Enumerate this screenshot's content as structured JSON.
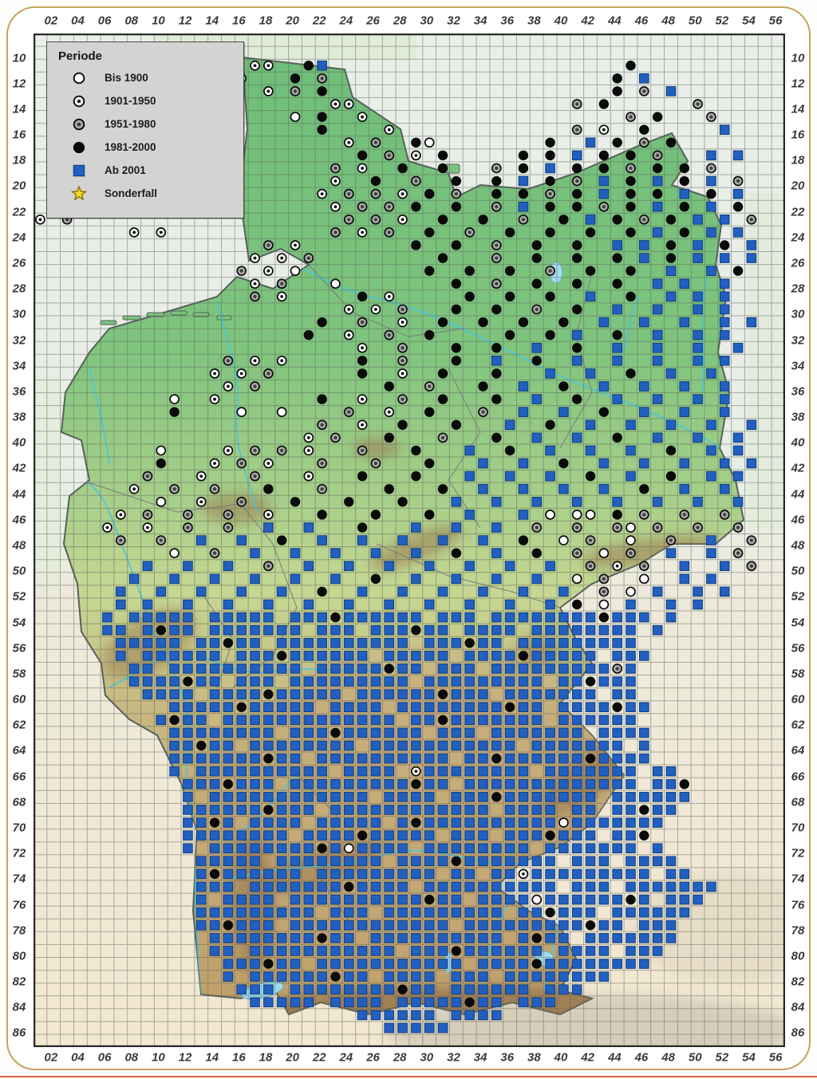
{
  "legend": {
    "title": "Periode",
    "items": [
      {
        "symbol": "circle-open",
        "label": "Bis 1900"
      },
      {
        "symbol": "circle-dot",
        "label": "1901-1950"
      },
      {
        "symbol": "circle-gray",
        "label": "1951-1980"
      },
      {
        "symbol": "circle-filled",
        "label": "1981-2000"
      },
      {
        "symbol": "square-blue",
        "label": "Ab 2001"
      },
      {
        "symbol": "star-yellow",
        "label": "Sonderfall"
      }
    ]
  },
  "axes": {
    "x_labels": [
      "02",
      "04",
      "06",
      "08",
      "10",
      "12",
      "14",
      "16",
      "18",
      "20",
      "22",
      "24",
      "26",
      "28",
      "30",
      "32",
      "34",
      "36",
      "38",
      "40",
      "42",
      "44",
      "46",
      "48",
      "50",
      "52",
      "54",
      "56"
    ],
    "y_labels": [
      "10",
      "12",
      "14",
      "16",
      "18",
      "20",
      "22",
      "24",
      "26",
      "28",
      "30",
      "32",
      "34",
      "36",
      "38",
      "40",
      "42",
      "44",
      "46",
      "48",
      "50",
      "52",
      "54",
      "56",
      "58",
      "60",
      "62",
      "64",
      "66",
      "68",
      "70",
      "72",
      "74",
      "76",
      "78",
      "80",
      "82",
      "84",
      "86"
    ]
  },
  "map": {
    "description": "Grid distribution map of Germany with occurrence records per period",
    "symbol_key": {
      "w": "Bis 1900",
      "d": "1901-1950",
      "g": "1951-1980",
      "k": "1981-2000",
      "b": "Ab 2001"
    },
    "cells": [
      "........................................................",
      "..............w.........................................",
      "................dd..kb......................k...........",
      "...............d...k.g.....................k.b..........",
      ".................d.g.k.....................k.g.b........",
      "......................dd................g.k......g......",
      "...................w.k..d...................g.k...g.....",
      ".....................k....d.............g.d..k.....b....",
      ".......................d.g..kw........k..b.k.g.k........",
      "........................k.g.d.k.....k.k.b.k.k.g...b.b...",
      "......................g.d..k..k...g.k.b.k.k.g.k.k.g.....",
      "......................d..k..g..k..k.b.k.g.b.k.b.k.b.g...",
      ".....................d.g.g.d.k.g..k.k.g.k.b.k.k.b.k.b...",
      ".g.d..................d.g.g.k..k..g.b.k.k.g.k.b.k.b.k...",
      "d.g....................g.g.d..k..k..g..k.b.k.g.k.b.b.g..",
      ".......d.d............g.d.g..k..g..k..k..k..k.b.k.b.b...",
      ".................g.d........k..k..g..k..k..b.b.k.b.k.b..",
      "................d.d.g.........k...g..k..k..k.b.k.b.b.b..",
      "...............g.d.w.........k..k..k..g..k..k..b..b.k...",
      "................d.g...w........k..g..k..k..k..b.b..b....",
      "................g.d.....k.d.....k..k..k..b..k..b.b.b....",
      ".......................d.d.g...k..k..g..k..b..b..b.b....",
      ".....................k..g..d..k..k..k..k..b..b..b..b.b..",
      "....................k..d..g..k.....k..k.b..k..b..b.b....",
      "........................d..g...k..k..b..k..b..b..b..b...",
      "..............g.d.d.....k..g...k..b..k..b..b..b..b.b....",
      ".............d.d.g......k..d..k...k...b..b..k..b..b.....",
      "..............d.g.........k..g...k..b..k..b..b..b..b....",
      "..........w..d.......k..d..g..k...k..b..k..b..b..b.b....",
      "..........k....w..w....g..d..k...g..b..b..k..b..b..b....",
      ".....................g..d..k...k...b..k..b..b..b..b..b..",
      "....................d.g...k...g...k..b..b..k..b..b..b...",
      ".........w....d.g.g.d...g...k...b..k..b..b..b..k..b.b...",
      ".........k...d.g.d...g...g...k...b..b..k..b..b..b..b.b..",
      "........g...d...g...d...k...k...b..b..b..k..b..k..b.b...",
      ".......d..g..g...k...g....k...k..b..b..b..b..k..b..b....",
      ".........w..d..g...k...k...k...b..b..b..b..b..b..b..b...",
      "......d.g..g..g..d...k...k...k..b...b.w.ww.k.g..g..g....",
      ".....d..d..g..g..b..b...k...b..b..b..g..g..gw.g..g..g...",
      "......g..g..b..b..k..b..b..b..b..b..k..w.g..w..g..b..g..",
      "..........w..g..b..b..b..b..b..k..b..k..g.w.g..b..b.g...",
      "........b..b..b..g..b..b..b..b..b..b..b..g.d.g..b..b.g..",
      ".......b..b..b..b..b..b..k..b..b..b..b..w.g..w..b.b.....",
      "......b..b..b..b..b..k..b..b..b..b..b..b..g.w.b..b.b....",
      "......b.b..b..b..b..b..b..b..b..b..b..b.k.w.b..b.b......",
      ".....b.bbbbb.bbbbb.bbbkbbbbbb.bbb.bbbbbbbbkbbb.b........",
      ".....bb.bkbb.bbbbbbb.bbb.bbbkbb.bbbb.bbbbbbbb.b.........",
      "......bbbbb.bbkbb.bbbbbbbbbb.bbbkbb.bbbbbbbbb...........",
      "......b.bbbbbb.bbbkbbbbbb.bbbbb.bbbbkbbbbb.bbb..........",
      ".......bb.bbbbbbbbbb.bbbbbkbb.bbb.bbbbbbbbbgb...........",
      ".......bbbbkbb.bbb.bbbbbbbbb.bbbbbbbbb.bbkbbb...........",
      "........bbbb.bbbbkbbbbb.bbbbbbkbbb.bbbbbbb.bb...........",
      "........).bbbbbkbbbbb.bbbb.bbbbbbbbkbb.bbbbkbb..........",
      ".........bkbb.bbbbbbbbbbbbb.bbkbbbbbbb.bbbbbb...........",
      "..........bbbbbbbb.bbbkbbbbbb.bbb.bbbbbbb.bbbb..........",
      "..........bbkbb.bbbbbbbb.bbbbbbbbbbb.bbbbbbb.b..........",
      "..........bbbbbbbkbb.bbbbbbbbbb.bbkbbbbbbkbbbb..........",
      "..........b.bbbbbbbbbb.bbbb.dbbbbbbbb.bbbbbbb.bb........",
      "...........bbbkbbb.bbbbbbbbbkbb.bbbbbbbbbbbbb.bbk.......",
      "...........b.bbbbbbbbbbbb.bbbb.bbbkbbbbbbb.bbbbbb.......",
      "...........bbbbbbkbbb.bbbbbbbbbbbb.bbbb.bb.bbkbb........",
      "...........bbkb.bbbb.bbbbb.bkbbbbbbbbbbwbbbbbbb.........",
      "...........bbbbbbbb.bbbbkbbbbb.bbb.bbbkbbb.bbk..........",
      "...........b.bbbbbbbbkbwbbbb.bbbbbbbb.bbbbbbb.b.........",
      "............bbbbb.bbbbbbbb.bbbbkbbbbbbb.bbb.bbbb........",
      "............bkbbbbbb.bbbbbbbbb.bb.bbdbbbbbbbbb.bb.......",
      "............bbb.bbbbbbbkbbbb.bbbbbbbbbb.bbb.bbbbbbb.....",
      "............b.bbbb.bbbbbbbbbbkbb.bbbbwbbbbbbkb.bbb......",
      "............bbbbbbbbb.bbb.bbbbbbbbb.bbkbbb.bbbbbb.......",
      "............bbkbbb.bbbbbbbbbbbb.bbbbbbbbbkbb.bbb........",
      ".............bbbbbbbbkbb.bbbbbbbbbb.bkbb.bbbbbbb........",
      ".............bb.bbbbbbbbbbb.bbbkbbbbbb.bbbb.bbb.........",
      "..............bbbkbb.bbbbbbbbbbb.bbbbkbbbbbbbb..........",
      "..............b.bbbbbbkbb.bbbb.bbb.bbbbbbbb.............",
      "...............bbb.bbbbbbbbkbb.bbbbbb.bbb...............",
      "................bbbbb.bbbb.bbbbbkbb.bbb.................",
      "........................bbbbbb.bbbb.....................",
      "..........................bbbbb.........................",
      "........................................................"
    ]
  },
  "colors": {
    "square_blue": "#2160c0",
    "square_blue_border": "#123d7e",
    "circle_black": "#0a0a0a",
    "circle_gray_fill": "#a9a9a9",
    "circle_gray_dot": "#3c3c3c",
    "circle_open_fill": "#ffffff",
    "symbol_outline": "#0c0c0c",
    "star_yellow": "#ffd92a",
    "star_outline": "#8a6d00",
    "frame_gold": "#c3a55c",
    "bottom_line_red": "#e2604c",
    "land_green_north": "#6fbe79",
    "land_tan_south": "#c09e69",
    "sea_pale": "#e9efe8",
    "foreign_south_pale": "#f2e7d0",
    "river_cyan": "#46c6e2",
    "grid_line": "#5f6660",
    "axis_text": "#3a3a3a",
    "legend_bg": "#d3d3d3"
  }
}
